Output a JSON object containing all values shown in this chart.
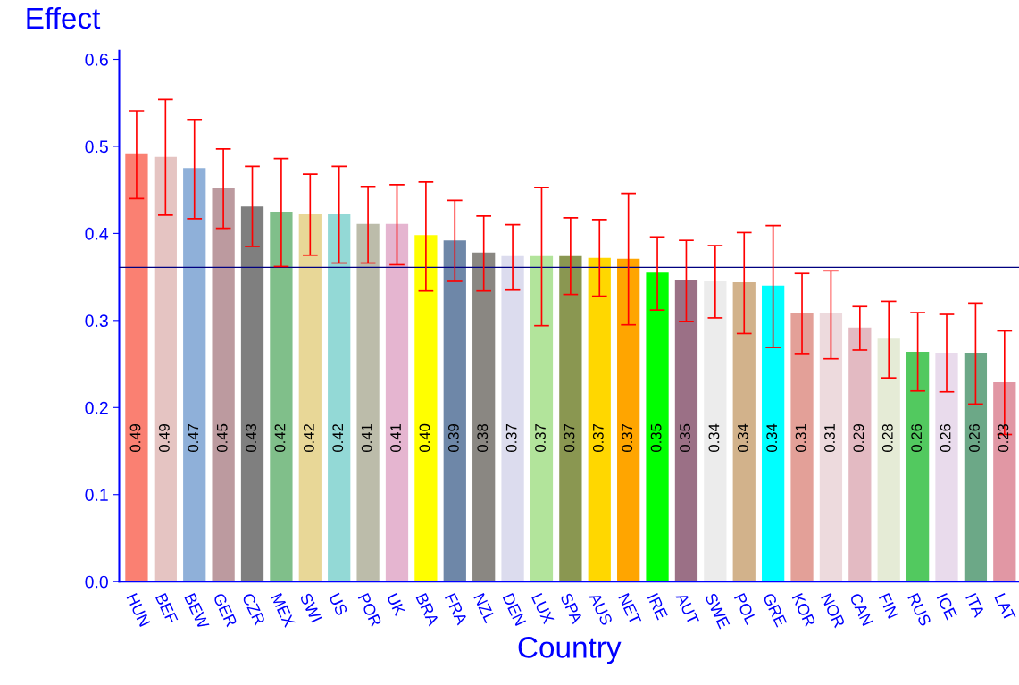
{
  "chart_data": {
    "type": "bar",
    "xlabel": "Country",
    "ylabel": "Effect",
    "categories": [
      "HUN",
      "BEF",
      "BEW",
      "GER",
      "CZR",
      "MEX",
      "SWI",
      "US",
      "POR",
      "UK",
      "BRA",
      "FRA",
      "NZL",
      "DEN",
      "LUX",
      "SPA",
      "AUS",
      "NET",
      "IRE",
      "AUT",
      "SWE",
      "POL",
      "GRE",
      "KOR",
      "NOR",
      "CAN",
      "FIN",
      "RUS",
      "ICE",
      "ITA",
      "LAT"
    ],
    "values": [
      0.492,
      0.488,
      0.475,
      0.452,
      0.431,
      0.425,
      0.422,
      0.422,
      0.411,
      0.411,
      0.398,
      0.392,
      0.378,
      0.374,
      0.374,
      0.374,
      0.372,
      0.371,
      0.355,
      0.347,
      0.345,
      0.344,
      0.34,
      0.309,
      0.308,
      0.292,
      0.279,
      0.264,
      0.263,
      0.263,
      0.229
    ],
    "errors": [
      [
        0.44,
        0.541
      ],
      [
        0.421,
        0.554
      ],
      [
        0.417,
        0.531
      ],
      [
        0.406,
        0.497
      ],
      [
        0.385,
        0.477
      ],
      [
        0.362,
        0.486
      ],
      [
        0.375,
        0.468
      ],
      [
        0.366,
        0.477
      ],
      [
        0.366,
        0.454
      ],
      [
        0.364,
        0.456
      ],
      [
        0.334,
        0.459
      ],
      [
        0.345,
        0.438
      ],
      [
        0.334,
        0.42
      ],
      [
        0.335,
        0.41
      ],
      [
        0.294,
        0.453
      ],
      [
        0.33,
        0.418
      ],
      [
        0.328,
        0.416
      ],
      [
        0.295,
        0.446
      ],
      [
        0.312,
        0.396
      ],
      [
        0.299,
        0.392
      ],
      [
        0.303,
        0.386
      ],
      [
        0.285,
        0.401
      ],
      [
        0.269,
        0.409
      ],
      [
        0.262,
        0.354
      ],
      [
        0.256,
        0.357
      ],
      [
        0.266,
        0.316
      ],
      [
        0.234,
        0.322
      ],
      [
        0.219,
        0.309
      ],
      [
        0.218,
        0.307
      ],
      [
        0.204,
        0.32
      ],
      [
        0.169,
        0.288
      ]
    ],
    "value_labels": [
      "0.49",
      "0.49",
      "0.47",
      "0.45",
      "0.43",
      "0.42",
      "0.42",
      "0.42",
      "0.41",
      "0.41",
      "0.40",
      "0.39",
      "0.38",
      "0.37",
      "0.37",
      "0.37",
      "0.37",
      "0.37",
      "0.35",
      "0.35",
      "0.34",
      "0.34",
      "0.34",
      "0.31",
      "0.31",
      "0.29",
      "0.28",
      "0.26",
      "0.26",
      "0.26",
      "0.23"
    ],
    "colors": [
      "#fa8072",
      "#e5c4c2",
      "#8fb0d9",
      "#bc9a9f",
      "#7f7f7f",
      "#80bf8a",
      "#e8d797",
      "#93d9d6",
      "#bcbcaa",
      "#e5b5d0",
      "#ffff00",
      "#6e87a8",
      "#8a8782",
      "#dcdcee",
      "#b2e49b",
      "#8a9751",
      "#ffd700",
      "#ffa500",
      "#00ff00",
      "#9b7086",
      "#ececec",
      "#d2b28b",
      "#00ffff",
      "#e3a098",
      "#eddadd",
      "#e3bac2",
      "#e5ebd6",
      "#52c95f",
      "#e9dbec",
      "#6ca887",
      "#e197a4"
    ],
    "ylim": [
      0,
      0.61
    ],
    "yticks": [
      {
        "value": 0,
        "label": "0.0"
      },
      0.1,
      0.2,
      0.3,
      0.4,
      0.5,
      0.6
    ],
    "ref_lines": [
      {
        "axis": "y",
        "value": 0.361,
        "color": "#000080"
      }
    ],
    "grid": false
  }
}
